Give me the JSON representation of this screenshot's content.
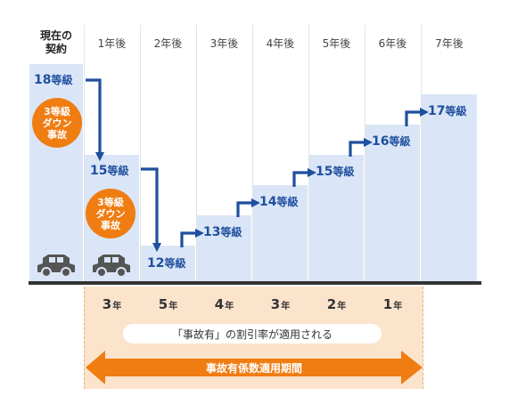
{
  "columns": [
    {
      "label": "現在の\n契約",
      "header_style": "bold"
    },
    {
      "label": "1年後"
    },
    {
      "label": "2年後"
    },
    {
      "label": "3年後"
    },
    {
      "label": "4年後"
    },
    {
      "label": "5年後"
    },
    {
      "label": "6年後"
    },
    {
      "label": "7年後"
    }
  ],
  "levels": [
    {
      "number": "18",
      "unit": "等級"
    },
    {
      "number": "15",
      "unit": "等級"
    },
    {
      "number": "12",
      "unit": "等級"
    },
    {
      "number": "13",
      "unit": "等級"
    },
    {
      "number": "14",
      "unit": "等級"
    },
    {
      "number": "15",
      "unit": "等級"
    },
    {
      "number": "16",
      "unit": "等級"
    },
    {
      "number": "17",
      "unit": "等級"
    }
  ],
  "accident_badges": [
    {
      "line1": "3等級",
      "line2": "ダウン",
      "line3": "事故"
    },
    {
      "line1": "3等級",
      "line2": "ダウン",
      "line3": "事故"
    }
  ],
  "years_remaining": [
    {
      "number": "3",
      "unit": "年"
    },
    {
      "number": "5",
      "unit": "年"
    },
    {
      "number": "4",
      "unit": "年"
    },
    {
      "number": "3",
      "unit": "年"
    },
    {
      "number": "2",
      "unit": "年"
    },
    {
      "number": "1",
      "unit": "年"
    }
  ],
  "rate_note": "「事故有」の割引率が適用される",
  "period_label": "事故有係数適用期間",
  "colors": {
    "bar": "#dae6f7",
    "blue": "#1f4f9e",
    "orange": "#f07d12",
    "peach": "#fbe3cc"
  },
  "icons": {
    "car": "car-icon"
  }
}
